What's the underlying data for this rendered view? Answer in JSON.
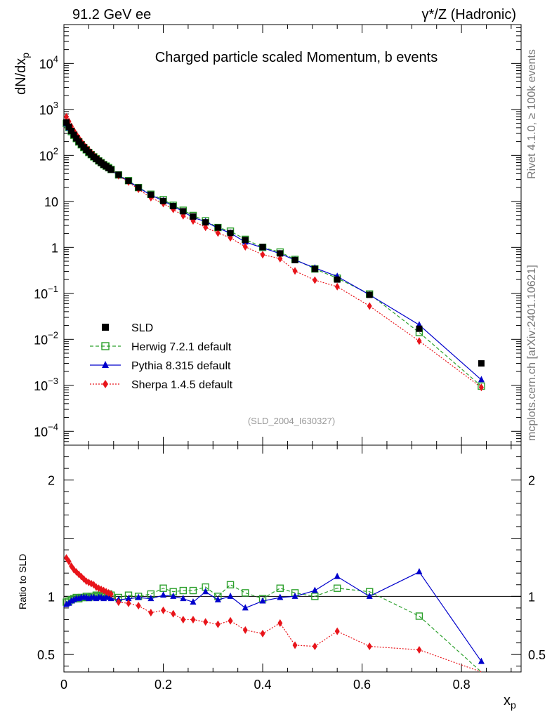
{
  "header": {
    "left": "91.2 GeV ee",
    "right": "γ*/Z (Hadronic)"
  },
  "side_labels": {
    "rivet": "Rivet 4.1.0, ≥ 100k events",
    "site": "mcplots.cern.ch [arXiv:2401.10621]"
  },
  "chart_data": {
    "type": "scatter",
    "title": "Charged particle scaled Momentum, b events",
    "analysis_id": "(SLD_2004_I630327)",
    "xlabel_main": "x",
    "xlabel_sub": "p",
    "ylabel_main": "dN/dx",
    "ylabel_sub": "p",
    "ratio_ylabel": "Ratio to SLD",
    "xlim": [
      0,
      0.92
    ],
    "ylim_log": [
      5e-05,
      70000
    ],
    "ratio_ylim": [
      0.35,
      2.3
    ],
    "x_ticks": [
      "0",
      "0.2",
      "0.4",
      "0.6",
      "0.8"
    ],
    "x_tick_values": [
      0,
      0.2,
      0.4,
      0.6,
      0.8
    ],
    "y_ticks": [
      {
        "value": 10000,
        "base": "10",
        "exp": "4"
      },
      {
        "value": 1000,
        "base": "10",
        "exp": "3"
      },
      {
        "value": 100,
        "base": "10",
        "exp": "2"
      },
      {
        "value": 10,
        "base": "10",
        "exp": ""
      },
      {
        "value": 1,
        "base": "1",
        "exp": ""
      },
      {
        "value": 0.1,
        "base": "10",
        "exp": "−1"
      },
      {
        "value": 0.01,
        "base": "10",
        "exp": "−2"
      },
      {
        "value": 0.001,
        "base": "10",
        "exp": "−3"
      },
      {
        "value": 0.0001,
        "base": "10",
        "exp": "−4"
      }
    ],
    "ratio_ticks": [
      {
        "value": 2,
        "label": "2"
      },
      {
        "value": 1,
        "label": "1"
      },
      {
        "value": 0.5,
        "label": "0.5"
      }
    ],
    "x": [
      0.005,
      0.01,
      0.015,
      0.02,
      0.025,
      0.03,
      0.035,
      0.04,
      0.045,
      0.05,
      0.055,
      0.06,
      0.065,
      0.07,
      0.075,
      0.08,
      0.085,
      0.09,
      0.095,
      0.11,
      0.13,
      0.15,
      0.175,
      0.2,
      0.22,
      0.24,
      0.26,
      0.285,
      0.31,
      0.335,
      0.365,
      0.4,
      0.435,
      0.465,
      0.505,
      0.55,
      0.615,
      0.715,
      0.84
    ],
    "series": [
      {
        "name": "SLD",
        "color": "#000000",
        "marker": "square-filled",
        "values": [
          520,
          420,
          340,
          280,
          235,
          200,
          172,
          150,
          132,
          117,
          104,
          93,
          84,
          76,
          69,
          63,
          58,
          53,
          49,
          38,
          28,
          20,
          14,
          10.2,
          7.9,
          6.1,
          4.7,
          3.5,
          2.7,
          2.05,
          1.45,
          1.02,
          0.74,
          0.53,
          0.34,
          0.2,
          0.093,
          0.017,
          0.003
        ]
      },
      {
        "name": "Herwig 7.2.1 default",
        "color": "#2ca02c",
        "marker": "square-open",
        "dash": "5,3",
        "ratio": [
          0.95,
          0.96,
          0.97,
          0.98,
          0.99,
          0.98,
          0.99,
          0.99,
          1.0,
          0.99,
          1.0,
          1.0,
          1.01,
          1.0,
          1.01,
          1.0,
          1.01,
          1.02,
          1.01,
          0.99,
          1.01,
          1.0,
          1.02,
          1.07,
          1.04,
          1.05,
          1.05,
          1.08,
          1.0,
          1.1,
          1.03,
          0.98,
          1.07,
          1.03,
          1.0,
          1.07,
          1.04,
          0.83,
          0.32
        ]
      },
      {
        "name": "Pythia 8.315 default",
        "color": "#0000cc",
        "marker": "triangle",
        "dash": "",
        "ratio": [
          0.93,
          0.94,
          0.96,
          0.97,
          0.98,
          0.98,
          0.99,
          0.99,
          0.99,
          0.98,
          0.99,
          0.99,
          0.98,
          0.99,
          0.99,
          0.98,
          0.99,
          0.99,
          0.98,
          0.97,
          0.98,
          0.99,
          0.98,
          1.01,
          1.0,
          0.98,
          0.95,
          1.04,
          0.97,
          1.0,
          0.9,
          0.96,
          0.99,
          1.0,
          1.05,
          1.17,
          1.0,
          1.21,
          0.44
        ]
      },
      {
        "name": "Sherpa 1.4.5 default",
        "color": "#e8141a",
        "marker": "diamond",
        "dash": "2,2",
        "ratio": [
          1.33,
          1.3,
          1.26,
          1.23,
          1.21,
          1.19,
          1.17,
          1.15,
          1.13,
          1.12,
          1.11,
          1.1,
          1.08,
          1.07,
          1.06,
          1.05,
          1.04,
          1.03,
          1.02,
          0.95,
          0.94,
          0.92,
          0.86,
          0.88,
          0.85,
          0.8,
          0.8,
          0.78,
          0.76,
          0.79,
          0.71,
          0.68,
          0.77,
          0.58,
          0.57,
          0.7,
          0.57,
          0.54,
          0.3
        ]
      }
    ]
  }
}
